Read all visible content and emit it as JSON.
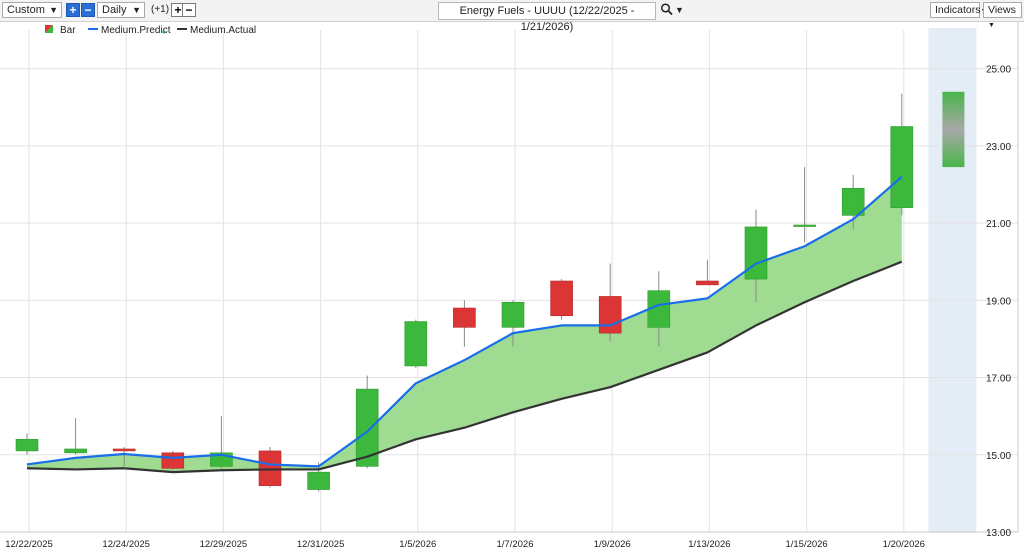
{
  "toolbar": {
    "period_preset": "Custom",
    "interval": "Daily",
    "offset": "(+1)",
    "title": "Energy Fuels - UUUU (12/22/2025 - 1/21/2026)",
    "indicators_label": "Indicators",
    "views_label": "Views"
  },
  "legend": {
    "bar": "Bar",
    "predict": "Medium.Predict",
    "actual": "Medium.Actual"
  },
  "colors": {
    "up": "#3cb83c",
    "down": "#dc3535",
    "predict": "#1a6ee8",
    "actual": "#333333",
    "fill": "#9fdc92",
    "forecast_band": "#e4ecf5"
  },
  "chart_data": {
    "type": "candlestick",
    "ylim": [
      13.0,
      26.0
    ],
    "yticks": [
      "13.00",
      "15.00",
      "17.00",
      "19.00",
      "21.00",
      "23.00",
      "25.00"
    ],
    "xtick_labels": [
      "12/22/2025",
      "12/24/2025",
      "12/29/2025",
      "12/31/2025",
      "1/5/2026",
      "1/7/2026",
      "1/9/2026",
      "1/13/2026",
      "1/15/2026",
      "1/20/2026"
    ],
    "candles": [
      {
        "open": 15.1,
        "high": 15.55,
        "low": 15.0,
        "close": 15.4
      },
      {
        "open": 15.05,
        "high": 15.95,
        "low": 15.0,
        "close": 15.15
      },
      {
        "open": 15.15,
        "high": 15.2,
        "low": 14.7,
        "close": 15.1
      },
      {
        "open": 15.05,
        "high": 15.1,
        "low": 14.6,
        "close": 14.65
      },
      {
        "open": 14.7,
        "high": 16.0,
        "low": 14.65,
        "close": 15.05
      },
      {
        "open": 15.1,
        "high": 15.2,
        "low": 14.15,
        "close": 14.2
      },
      {
        "open": 14.1,
        "high": 14.8,
        "low": 14.05,
        "close": 14.55
      },
      {
        "open": 14.7,
        "high": 17.05,
        "low": 14.65,
        "close": 16.7
      },
      {
        "open": 17.3,
        "high": 18.5,
        "low": 17.25,
        "close": 18.45
      },
      {
        "open": 18.8,
        "high": 19.0,
        "low": 17.8,
        "close": 18.3
      },
      {
        "open": 18.3,
        "high": 19.0,
        "low": 17.8,
        "close": 18.95
      },
      {
        "open": 19.5,
        "high": 19.55,
        "low": 18.5,
        "close": 18.6
      },
      {
        "open": 19.1,
        "high": 19.95,
        "low": 17.95,
        "close": 18.15
      },
      {
        "open": 18.3,
        "high": 19.75,
        "low": 17.8,
        "close": 19.25
      },
      {
        "open": 19.5,
        "high": 20.05,
        "low": 19.4,
        "close": 19.4
      },
      {
        "open": 19.55,
        "high": 21.35,
        "low": 18.95,
        "close": 20.9
      },
      {
        "open": 20.95,
        "high": 22.45,
        "low": 20.5,
        "close": 20.95
      },
      {
        "open": 21.2,
        "high": 22.25,
        "low": 20.85,
        "close": 21.9
      },
      {
        "open": 21.4,
        "high": 24.35,
        "low": 21.2,
        "close": 23.5
      }
    ],
    "forecast_candle": {
      "open": 22.45,
      "close": 24.4
    },
    "series": [
      {
        "name": "Medium.Predict",
        "values": [
          14.75,
          14.92,
          15.02,
          14.92,
          15.0,
          14.75,
          14.7,
          15.6,
          16.85,
          17.45,
          18.15,
          18.35,
          18.35,
          18.88,
          19.05,
          19.95,
          20.4,
          21.1,
          22.2
        ]
      },
      {
        "name": "Medium.Actual",
        "values": [
          14.65,
          14.62,
          14.65,
          14.55,
          14.6,
          14.62,
          14.62,
          14.95,
          15.4,
          15.7,
          16.1,
          16.45,
          16.75,
          17.2,
          17.65,
          18.35,
          18.95,
          19.5,
          20.0
        ]
      }
    ]
  }
}
